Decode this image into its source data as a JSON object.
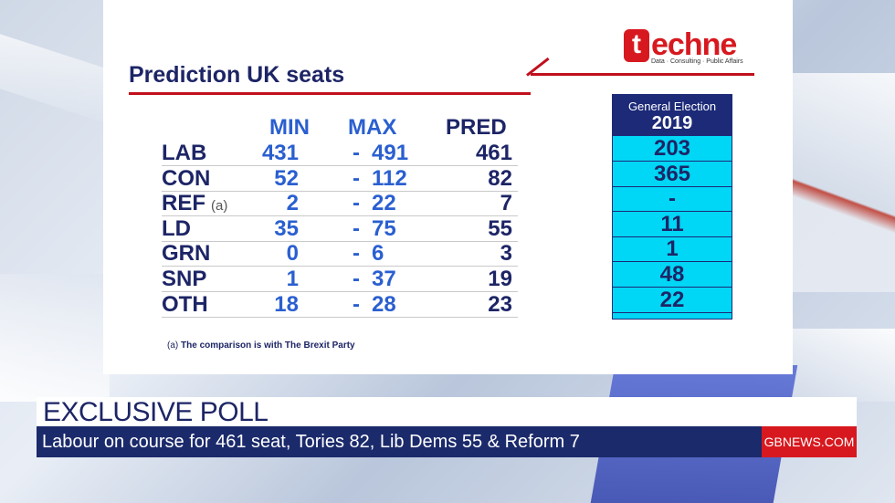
{
  "logo": {
    "first_letter": "t",
    "rest": "echne",
    "tagline": "Data · Consulting · Public Affairs"
  },
  "title": "Prediction UK seats",
  "headers": {
    "min": "MIN",
    "max": "MAX",
    "pred": "PRED"
  },
  "ge_header": {
    "line1": "General Election",
    "line2": "2019"
  },
  "rows": [
    {
      "party": "LAB",
      "note": "",
      "min": "431",
      "dash": "-",
      "max": "491",
      "pred": "461",
      "ge2019": "203"
    },
    {
      "party": "CON",
      "note": "",
      "min": "52",
      "dash": "-",
      "max": "112",
      "pred": "82",
      "ge2019": "365"
    },
    {
      "party": "REF",
      "note": "(a)",
      "min": "2",
      "dash": "-",
      "max": "22",
      "pred": "7",
      "ge2019": "-"
    },
    {
      "party": "LD",
      "note": "",
      "min": "35",
      "dash": "-",
      "max": "75",
      "pred": "55",
      "ge2019": "11"
    },
    {
      "party": "GRN",
      "note": "",
      "min": "0",
      "dash": "-",
      "max": "6",
      "pred": "3",
      "ge2019": "1"
    },
    {
      "party": "SNP",
      "note": "",
      "min": "1",
      "dash": "-",
      "max": "37",
      "pred": "19",
      "ge2019": "48"
    },
    {
      "party": "OTH",
      "note": "",
      "min": "18",
      "dash": "-",
      "max": "28",
      "pred": "23",
      "ge2019": "22"
    }
  ],
  "footnote": {
    "marker": "(a)",
    "text": "The comparison is with The Brexit Party"
  },
  "lower_third": {
    "headline": "EXCLUSIVE POLL",
    "ticker": "Labour on course for 461 seat, Tories 82, Lib Dems 55 & Reform 7",
    "brand": "GBNEWS.COM"
  },
  "colors": {
    "navy": "#1d2566",
    "blue": "#2a5fd0",
    "red": "#d7191f",
    "cyan": "#00d6f5",
    "ticker_bg": "#1b2a6b"
  }
}
